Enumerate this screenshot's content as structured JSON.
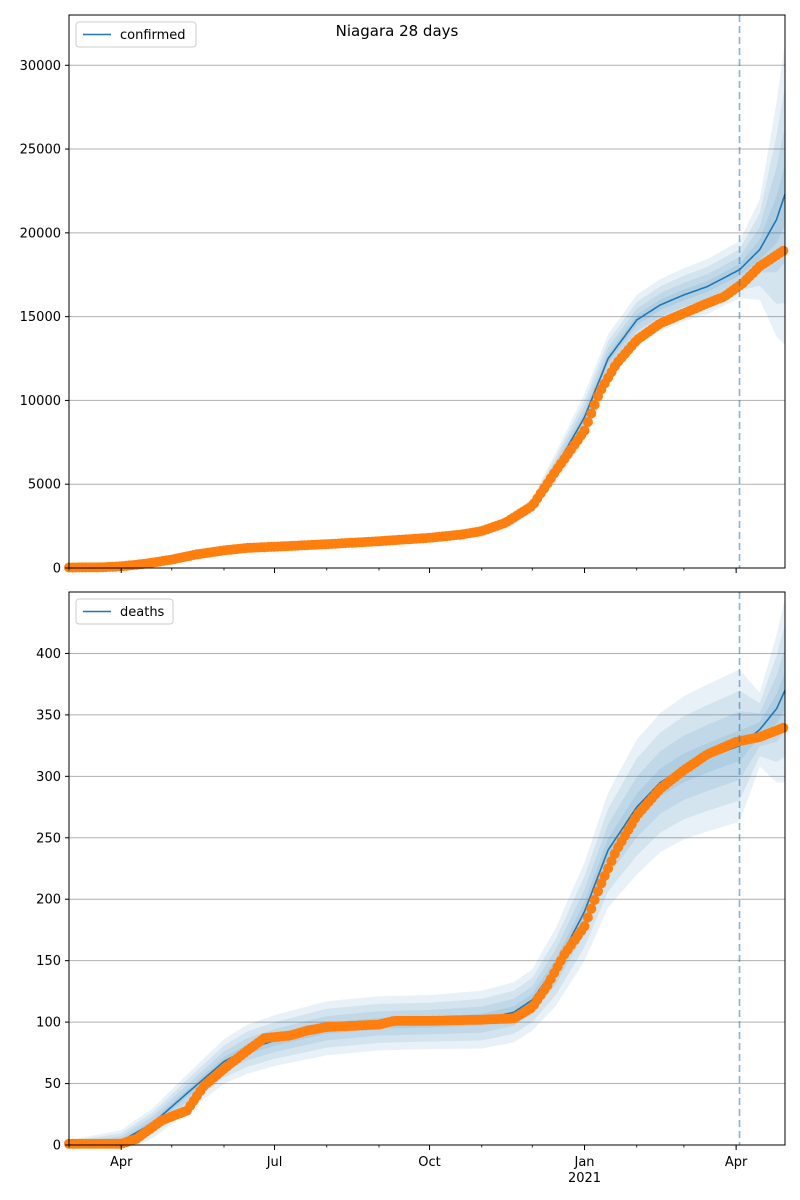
{
  "title": "Niagara 28 days",
  "colors": {
    "model": "#1f77b4",
    "observed": "#ff7f0e",
    "grid": "#b0b0b0",
    "vline": "#1f77b4"
  },
  "xaxis": {
    "range": [
      "2020-03-01",
      "2021-04-30"
    ],
    "major_ticks": [
      {
        "date": "2020-04-01",
        "label": "Apr"
      },
      {
        "date": "2020-07-01",
        "label": "Jul"
      },
      {
        "date": "2020-10-01",
        "label": "Oct"
      },
      {
        "date": "2021-01-01",
        "label": "Jan"
      },
      {
        "date": "2021-04-01",
        "label": "Apr"
      }
    ],
    "year_label": {
      "date": "2021-01-01",
      "label": "2021"
    },
    "forecast_start": "2021-04-03"
  },
  "chart_data": [
    {
      "type": "line",
      "legend": "confirmed",
      "legend_position": "top-left",
      "grid": "horizontal",
      "ylim": [
        0,
        33000
      ],
      "yticks": [
        0,
        5000,
        10000,
        15000,
        20000,
        25000,
        30000
      ],
      "model_series": [
        {
          "date": "2020-03-01",
          "value": 50
        },
        {
          "date": "2020-04-01",
          "value": 100
        },
        {
          "date": "2020-05-01",
          "value": 600
        },
        {
          "date": "2020-06-01",
          "value": 1150
        },
        {
          "date": "2020-07-01",
          "value": 1300
        },
        {
          "date": "2020-08-01",
          "value": 1450
        },
        {
          "date": "2020-09-01",
          "value": 1600
        },
        {
          "date": "2020-10-01",
          "value": 1800
        },
        {
          "date": "2020-11-01",
          "value": 2100
        },
        {
          "date": "2020-11-20",
          "value": 2900
        },
        {
          "date": "2020-12-01",
          "value": 3800
        },
        {
          "date": "2020-12-15",
          "value": 6000
        },
        {
          "date": "2021-01-01",
          "value": 9000
        },
        {
          "date": "2021-01-15",
          "value": 12500
        },
        {
          "date": "2021-02-01",
          "value": 14800
        },
        {
          "date": "2021-02-15",
          "value": 15700
        },
        {
          "date": "2021-03-01",
          "value": 16300
        },
        {
          "date": "2021-03-15",
          "value": 16800
        },
        {
          "date": "2021-04-03",
          "value": 17800
        },
        {
          "date": "2021-04-15",
          "value": 19000
        },
        {
          "date": "2021-04-25",
          "value": 20800
        },
        {
          "date": "2021-04-30",
          "value": 22300
        }
      ],
      "observed_series": [
        {
          "date": "2020-03-01",
          "value": 30
        },
        {
          "date": "2020-03-20",
          "value": 40
        },
        {
          "date": "2020-04-01",
          "value": 100
        },
        {
          "date": "2020-04-15",
          "value": 250
        },
        {
          "date": "2020-05-01",
          "value": 500
        },
        {
          "date": "2020-05-15",
          "value": 800
        },
        {
          "date": "2020-06-01",
          "value": 1050
        },
        {
          "date": "2020-06-15",
          "value": 1200
        },
        {
          "date": "2020-07-01",
          "value": 1270
        },
        {
          "date": "2020-08-01",
          "value": 1420
        },
        {
          "date": "2020-09-01",
          "value": 1600
        },
        {
          "date": "2020-10-01",
          "value": 1800
        },
        {
          "date": "2020-10-20",
          "value": 2000
        },
        {
          "date": "2020-11-01",
          "value": 2200
        },
        {
          "date": "2020-11-15",
          "value": 2700
        },
        {
          "date": "2020-12-01",
          "value": 3700
        },
        {
          "date": "2020-12-15",
          "value": 5800
        },
        {
          "date": "2021-01-01",
          "value": 8200
        },
        {
          "date": "2021-01-10",
          "value": 10500
        },
        {
          "date": "2021-01-20",
          "value": 12200
        },
        {
          "date": "2021-02-01",
          "value": 13600
        },
        {
          "date": "2021-02-15",
          "value": 14600
        },
        {
          "date": "2021-03-01",
          "value": 15200
        },
        {
          "date": "2021-03-15",
          "value": 15800
        },
        {
          "date": "2021-03-25",
          "value": 16200
        },
        {
          "date": "2021-04-05",
          "value": 17000
        },
        {
          "date": "2021-04-15",
          "value": 18000
        },
        {
          "date": "2021-04-30",
          "value": 19000
        }
      ],
      "band_spread": [
        {
          "date": "2020-03-01",
          "value": 20
        },
        {
          "date": "2020-06-01",
          "value": 60
        },
        {
          "date": "2020-10-01",
          "value": 120
        },
        {
          "date": "2020-12-01",
          "value": 400
        },
        {
          "date": "2020-12-15",
          "value": 900
        },
        {
          "date": "2021-01-01",
          "value": 1400
        },
        {
          "date": "2021-02-01",
          "value": 1500
        },
        {
          "date": "2021-04-03",
          "value": 1700
        },
        {
          "date": "2021-04-15",
          "value": 3000
        },
        {
          "date": "2021-04-30",
          "value": 9000
        }
      ]
    },
    {
      "type": "line",
      "legend": "deaths",
      "legend_position": "top-left",
      "grid": "horizontal",
      "ylim": [
        0,
        450
      ],
      "yticks": [
        0,
        50,
        100,
        150,
        200,
        250,
        300,
        350,
        400
      ],
      "model_series": [
        {
          "date": "2020-03-01",
          "value": 0
        },
        {
          "date": "2020-04-01",
          "value": 3
        },
        {
          "date": "2020-04-20",
          "value": 18
        },
        {
          "date": "2020-05-10",
          "value": 42
        },
        {
          "date": "2020-06-01",
          "value": 68
        },
        {
          "date": "2020-06-15",
          "value": 78
        },
        {
          "date": "2020-07-01",
          "value": 85
        },
        {
          "date": "2020-08-01",
          "value": 95
        },
        {
          "date": "2020-09-01",
          "value": 99
        },
        {
          "date": "2020-10-01",
          "value": 100
        },
        {
          "date": "2020-11-01",
          "value": 102
        },
        {
          "date": "2020-11-20",
          "value": 108
        },
        {
          "date": "2020-12-01",
          "value": 118
        },
        {
          "date": "2020-12-15",
          "value": 145
        },
        {
          "date": "2021-01-01",
          "value": 190
        },
        {
          "date": "2021-01-15",
          "value": 240
        },
        {
          "date": "2021-02-01",
          "value": 275
        },
        {
          "date": "2021-02-15",
          "value": 295
        },
        {
          "date": "2021-03-01",
          "value": 307
        },
        {
          "date": "2021-03-15",
          "value": 315
        },
        {
          "date": "2021-04-03",
          "value": 325
        },
        {
          "date": "2021-04-15",
          "value": 338
        },
        {
          "date": "2021-04-25",
          "value": 355
        },
        {
          "date": "2021-04-30",
          "value": 370
        }
      ],
      "observed_series": [
        {
          "date": "2020-03-01",
          "value": 1
        },
        {
          "date": "2020-04-01",
          "value": 1
        },
        {
          "date": "2020-04-10",
          "value": 5
        },
        {
          "date": "2020-04-25",
          "value": 20
        },
        {
          "date": "2020-05-10",
          "value": 28
        },
        {
          "date": "2020-05-20",
          "value": 48
        },
        {
          "date": "2020-06-01",
          "value": 62
        },
        {
          "date": "2020-06-15",
          "value": 77
        },
        {
          "date": "2020-06-25",
          "value": 87
        },
        {
          "date": "2020-07-10",
          "value": 89
        },
        {
          "date": "2020-07-20",
          "value": 93
        },
        {
          "date": "2020-08-01",
          "value": 96
        },
        {
          "date": "2020-09-01",
          "value": 98
        },
        {
          "date": "2020-09-10",
          "value": 101
        },
        {
          "date": "2020-10-01",
          "value": 101
        },
        {
          "date": "2020-11-01",
          "value": 102
        },
        {
          "date": "2020-11-20",
          "value": 103
        },
        {
          "date": "2020-12-01",
          "value": 112
        },
        {
          "date": "2020-12-10",
          "value": 130
        },
        {
          "date": "2020-12-20",
          "value": 155
        },
        {
          "date": "2021-01-01",
          "value": 178
        },
        {
          "date": "2021-01-10",
          "value": 210
        },
        {
          "date": "2021-01-20",
          "value": 240
        },
        {
          "date": "2021-02-01",
          "value": 268
        },
        {
          "date": "2021-02-15",
          "value": 290
        },
        {
          "date": "2021-03-01",
          "value": 305
        },
        {
          "date": "2021-03-15",
          "value": 318
        },
        {
          "date": "2021-04-01",
          "value": 328
        },
        {
          "date": "2021-04-15",
          "value": 332
        },
        {
          "date": "2021-04-30",
          "value": 340
        }
      ],
      "band_spread": [
        {
          "date": "2020-03-01",
          "value": 4
        },
        {
          "date": "2020-05-01",
          "value": 14
        },
        {
          "date": "2020-06-15",
          "value": 20
        },
        {
          "date": "2020-08-01",
          "value": 22
        },
        {
          "date": "2020-10-01",
          "value": 22
        },
        {
          "date": "2020-12-01",
          "value": 25
        },
        {
          "date": "2021-01-01",
          "value": 40
        },
        {
          "date": "2021-02-01",
          "value": 55
        },
        {
          "date": "2021-04-03",
          "value": 62
        },
        {
          "date": "2021-04-15",
          "value": 30
        },
        {
          "date": "2021-04-30",
          "value": 75
        }
      ]
    }
  ]
}
